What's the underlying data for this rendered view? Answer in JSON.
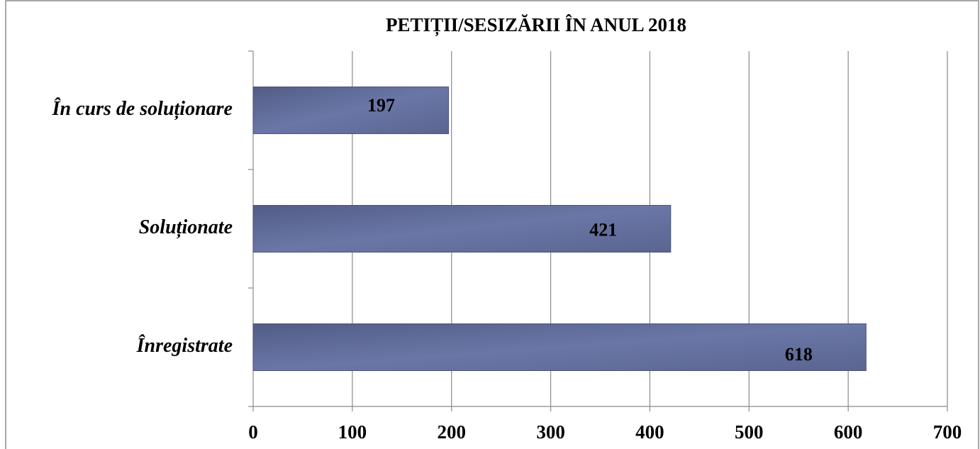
{
  "chart_data": {
    "type": "bar",
    "orientation": "horizontal",
    "title": "PETIȚII/SESIZĂRII ÎN ANUL 2018",
    "categories": [
      "În curs de soluționare",
      "Soluționate",
      "Înregistrate"
    ],
    "values": [
      197,
      421,
      618
    ],
    "color": "#646f9c",
    "xlim": [
      0,
      700
    ],
    "xticks": [
      0,
      100,
      200,
      300,
      400,
      500,
      600,
      700
    ],
    "grid": true
  }
}
